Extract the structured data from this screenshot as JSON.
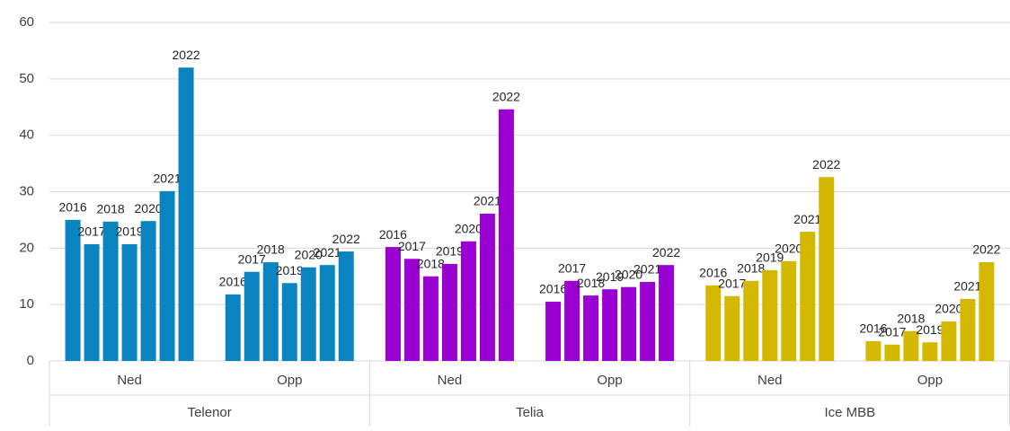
{
  "chart_data": {
    "type": "bar",
    "years": [
      "2016",
      "2017",
      "2018",
      "2019",
      "2020",
      "2021",
      "2022"
    ],
    "groups": [
      {
        "name": "Telenor",
        "color": "#0a84c0",
        "subgroups": [
          {
            "name": "Ned",
            "values": [
              25.0,
              20.7,
              24.7,
              20.7,
              24.8,
              30.1,
              52.0
            ]
          },
          {
            "name": "Opp",
            "values": [
              11.8,
              15.8,
              17.5,
              13.8,
              16.6,
              17.0,
              19.4
            ]
          }
        ]
      },
      {
        "name": "Telia",
        "color": "#9b00d3",
        "subgroups": [
          {
            "name": "Ned",
            "values": [
              20.2,
              18.1,
              15.0,
              17.2,
              21.2,
              26.1,
              44.6
            ]
          },
          {
            "name": "Opp",
            "values": [
              10.5,
              14.2,
              11.6,
              12.7,
              13.1,
              14.0,
              17.0
            ]
          }
        ]
      },
      {
        "name": "Ice MBB",
        "color": "#d4b800",
        "subgroups": [
          {
            "name": "Ned",
            "values": [
              13.4,
              11.5,
              14.2,
              16.1,
              17.7,
              22.9,
              32.6
            ]
          },
          {
            "name": "Opp",
            "values": [
              3.5,
              2.9,
              5.3,
              3.3,
              7.0,
              11.0,
              17.5
            ]
          }
        ]
      }
    ],
    "ylim": [
      0,
      60
    ],
    "yticks": [
      0,
      10,
      20,
      30,
      40,
      50,
      60
    ],
    "grid": true
  }
}
